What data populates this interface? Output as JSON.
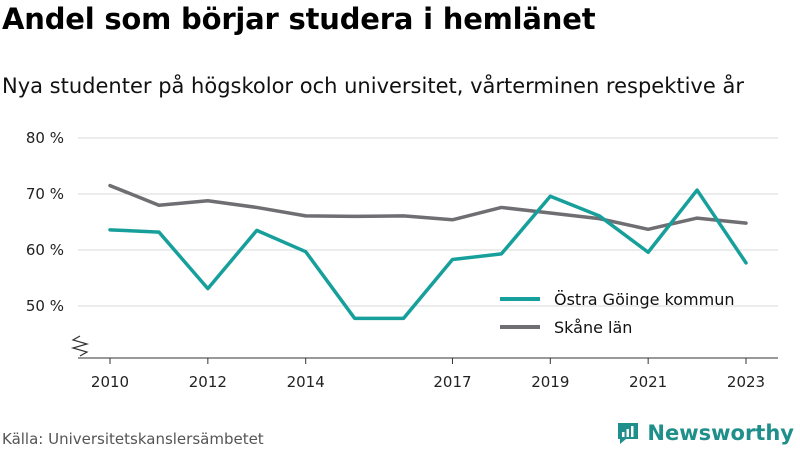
{
  "title": "Andel som börjar studera i hemlänet",
  "subtitle": "Nya studenter på högskolor och universitet, vårterminen respektive år",
  "source": "Källa: Universitetskanslersämbetet",
  "brand": {
    "name": "Newsworthy",
    "icon": "bar-chart-logo-icon",
    "color": "#1e8f8a"
  },
  "chart_data": {
    "type": "line",
    "x": [
      2010,
      2011,
      2012,
      2013,
      2014,
      2015,
      2016,
      2017,
      2018,
      2019,
      2020,
      2021,
      2022,
      2023
    ],
    "series": [
      {
        "name": "Östra Göinge kommun",
        "color": "#17a09b",
        "values": [
          63.6,
          63.2,
          53.1,
          63.5,
          59.7,
          47.8,
          47.8,
          58.3,
          59.3,
          69.6,
          66.1,
          59.6,
          70.7,
          57.7
        ]
      },
      {
        "name": "Skåne län",
        "color": "#6f6f73",
        "values": [
          71.5,
          68.0,
          68.8,
          67.6,
          66.1,
          66.0,
          66.1,
          65.4,
          67.6,
          66.6,
          65.6,
          63.7,
          65.7,
          64.8
        ]
      }
    ],
    "yticks": [
      50,
      60,
      70,
      80
    ],
    "ytick_labels": [
      "50 %",
      "60 %",
      "70 %",
      "80 %"
    ],
    "xticks": [
      2010,
      2012,
      2014,
      2017,
      2019,
      2021,
      2023
    ],
    "xtick_labels": [
      "2010",
      "2012",
      "2014",
      "2017",
      "2019",
      "2021",
      "2023"
    ],
    "ylim": [
      45,
      80
    ],
    "xlim": [
      2010,
      2023
    ],
    "axis_break": true,
    "grid": true,
    "legend": "right-bottom"
  }
}
